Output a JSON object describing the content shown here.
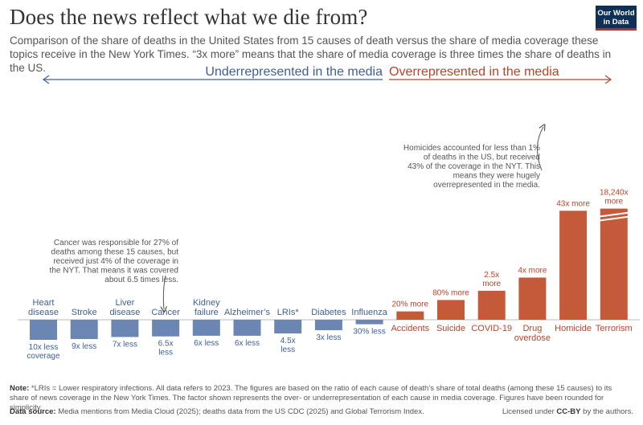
{
  "header": {
    "title": "Does the news reflect what we die from?",
    "subtitle": "Comparison of the share of deaths in the United States from 15 causes of death versus the share of media coverage these topics receive in the New York Times. “3x more” means that the share of media coverage is three times the share of deaths in the US.",
    "logo_line1": "Our World",
    "logo_line2": "in Data"
  },
  "colors": {
    "under": "#6b86b2",
    "over": "#c55a3a",
    "under_text": "#3f5f95",
    "over_text": "#b9442a"
  },
  "arrows": {
    "under_label": "Underrepresented in the media",
    "over_label": "Overrepresented in the media"
  },
  "chart_data": {
    "type": "bar",
    "title": "",
    "xlabel": "",
    "ylabel": "",
    "categories": [
      "Heart disease",
      "Stroke",
      "Liver disease",
      "Cancer",
      "Kidney failure",
      "Alzheimer’s",
      "LRIs*",
      "Diabetes",
      "Influenza",
      "Accidents",
      "Suicide",
      "COVID-19",
      "Drug overdose",
      "Homicide",
      "Terrorism"
    ],
    "direction": [
      "less",
      "less",
      "less",
      "less",
      "less",
      "less",
      "less",
      "less",
      "less",
      "more",
      "more",
      "more",
      "more",
      "more",
      "more"
    ],
    "values": [
      10,
      9,
      7,
      6.5,
      6,
      6,
      4.5,
      3,
      30,
      20,
      80,
      2.5,
      4,
      43,
      18240
    ],
    "value_labels": [
      "10x less coverage",
      "9x less",
      "7x less",
      "6.5x less",
      "6x less",
      "6x less",
      "4.5x less",
      "3x less",
      "30% less",
      "20% more",
      "80% more",
      "2.5x more",
      "4x more",
      "43x more",
      "18,240x more"
    ],
    "axis_break": "Terrorism"
  },
  "annotations": {
    "cancer": "Cancer was responsible for 27% of deaths among these 15 causes, but received just 4% of the coverage in the NYT. That means it was covered about 6.5 times less.",
    "homicide": "Homicides accounted for less than 1% of deaths in the US, but received 43% of the coverage in the NYT. This means they were hugely overrepresented in the media."
  },
  "footer": {
    "note_label": "Note:",
    "note": "*LRIs = Lower respiratory infections. All data refers to 2023. The figures are based on the ratio of each cause of death’s share of total deaths (among these 15 causes) to its share of news coverage in the New York Times. The factor shown represents the over- or underrepresentation of each cause in media coverage. Figures have been rounded for simplicity.",
    "source_label": "Data source:",
    "source": "Media mentions from Media Cloud (2025); deaths data from the US CDC (2025) and Global Terrorism Index.",
    "license_prefix": "Licensed under ",
    "license_name": "CC-BY",
    "license_suffix": " by the authors."
  }
}
